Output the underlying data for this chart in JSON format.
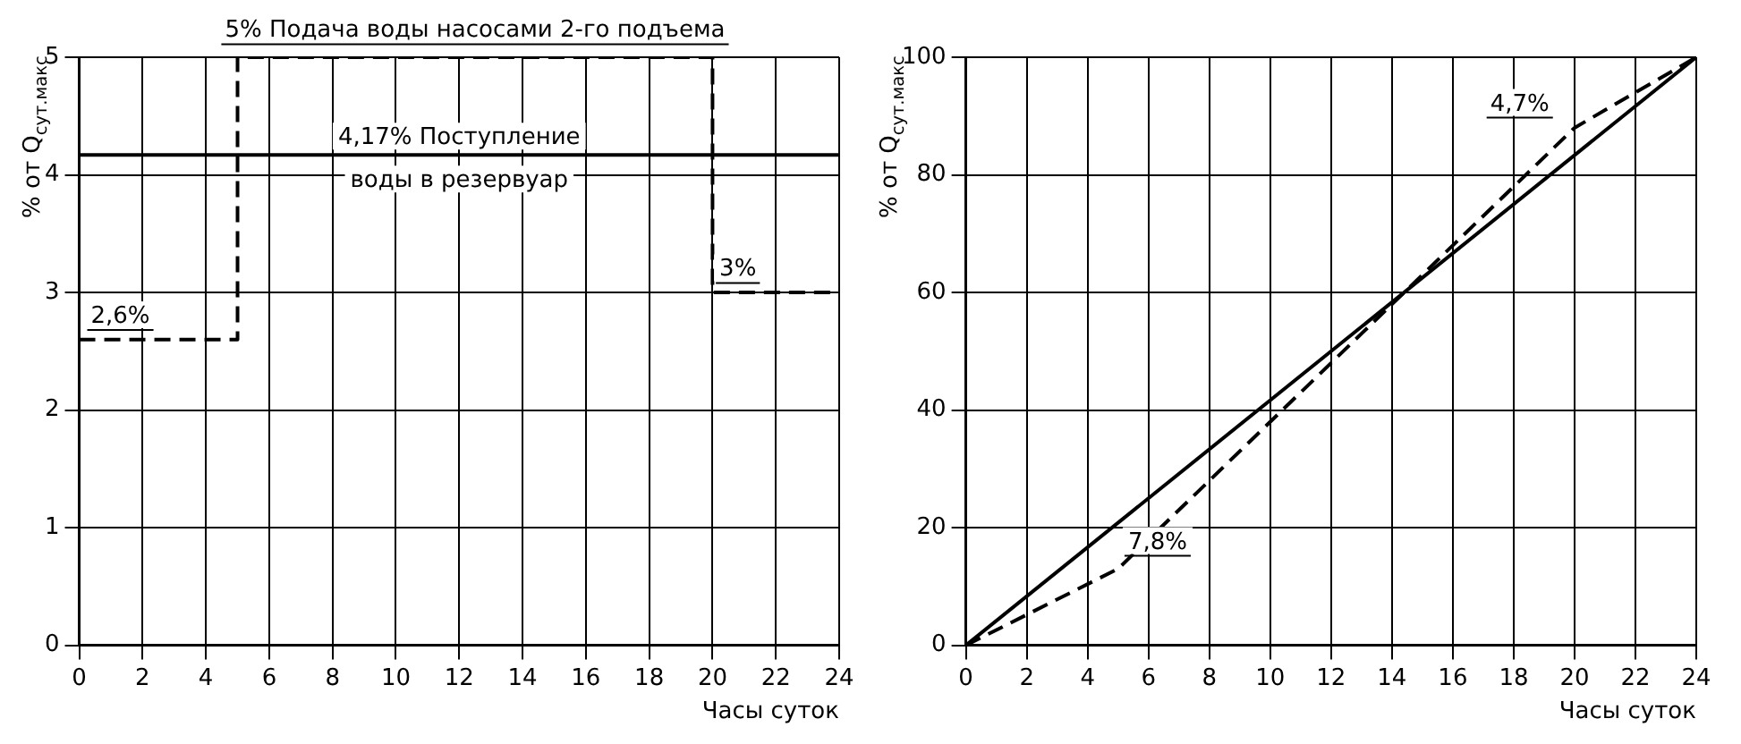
{
  "chart_data": [
    {
      "type": "line",
      "xlabel": "Часы суток",
      "ylabel": "% от Q$_{сут.макс}$",
      "xlim": [
        0,
        24
      ],
      "xticks": [
        0,
        2,
        4,
        6,
        8,
        10,
        12,
        14,
        16,
        18,
        20,
        22,
        24
      ],
      "ylim": [
        0,
        5
      ],
      "yticks": [
        0,
        1,
        2,
        3,
        4,
        5
      ],
      "grid": true,
      "series": [
        {
          "type": "step",
          "color": "#000000",
          "line_style": "dashed",
          "x": [
            0,
            5,
            20,
            24
          ],
          "values": [
            2.6,
            5,
            3,
            3
          ]
        },
        {
          "type": "line",
          "color": "#000000",
          "line_style": "solid",
          "x": [
            0,
            24
          ],
          "values": [
            4.17,
            4.17
          ]
        }
      ],
      "annotations": [
        "5% Подача воды насосами 2-го подъема",
        {
          "text": "4,17% Поступление\nводы в резервуар",
          "x": 12,
          "y": 4.17
        },
        "2,6%",
        "3%"
      ]
    },
    {
      "type": "line",
      "xlabel": "Часы суток",
      "ylabel": "% от Q$_{сут.макс}$",
      "xlim": [
        0,
        24
      ],
      "xticks": [
        0,
        2,
        4,
        6,
        8,
        10,
        12,
        14,
        16,
        18,
        20,
        22,
        24
      ],
      "ylim": [
        0,
        100
      ],
      "yticks": [
        0,
        20,
        40,
        60,
        80,
        100
      ],
      "grid": true,
      "series": [
        {
          "type": "line",
          "color": "#000000",
          "line_style": "solid",
          "x": [
            0,
            24
          ],
          "values": [
            0,
            100
          ]
        },
        {
          "type": "line",
          "color": "#000000",
          "line_style": "dashed",
          "x": [
            0,
            5,
            20,
            24
          ],
          "values": [
            0,
            13,
            88,
            100
          ]
        }
      ],
      "annotations": [
        "4,7%",
        "7,8%"
      ]
    }
  ]
}
